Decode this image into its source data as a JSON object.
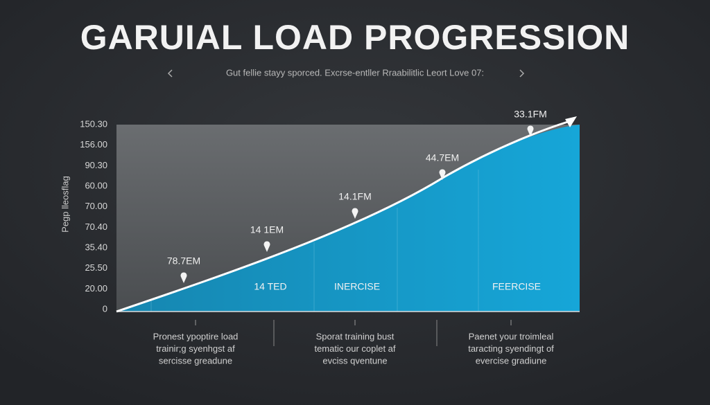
{
  "header": {
    "title": "GARUIAL LOAD PROGRESSION",
    "subtitle": "Gut fellie stayy sporced. Excrse-entller Rraabilitlic Leort Love 07:"
  },
  "axis": {
    "label": "Pegp lleosflag",
    "ticks": [
      "150.30",
      "156.00",
      "90.30",
      "60.00",
      "70.00",
      "70.40",
      "35.40",
      "25.50",
      "20.00",
      "0"
    ]
  },
  "point_labels": [
    "78.7EM",
    "14 1EM",
    "14.1FM",
    "44.7EM",
    "33.1FM"
  ],
  "phases": [
    "14 TED",
    "INERCISE",
    "FEERCISE"
  ],
  "notes": [
    [
      "Pronest ypoptire load",
      "trainir;g syenhgst af",
      "sercisse greadune"
    ],
    [
      "Sporat training bust",
      "tematic our coplet af",
      "evciss qventune"
    ],
    [
      "Paenet your troimleal",
      "taracting syendingt of",
      "evercise gradiune"
    ]
  ]
}
